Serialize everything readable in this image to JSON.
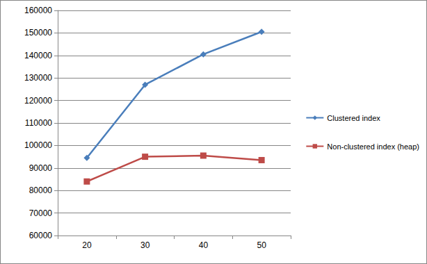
{
  "chart_data": {
    "type": "line",
    "categories": [
      "20",
      "30",
      "40",
      "50"
    ],
    "series": [
      {
        "name": "Clustered index",
        "color": "#4a7ebb",
        "marker": "diamond",
        "values": [
          94500,
          127000,
          140500,
          150500
        ]
      },
      {
        "name": "Non-clustered index (heap)",
        "color": "#be4b48",
        "marker": "square",
        "values": [
          84000,
          95000,
          95500,
          93500
        ]
      }
    ],
    "ylim": [
      60000,
      160000
    ],
    "yticks": [
      60000,
      70000,
      80000,
      90000,
      100000,
      110000,
      120000,
      130000,
      140000,
      150000,
      160000
    ],
    "grid": true,
    "legend": "right"
  }
}
